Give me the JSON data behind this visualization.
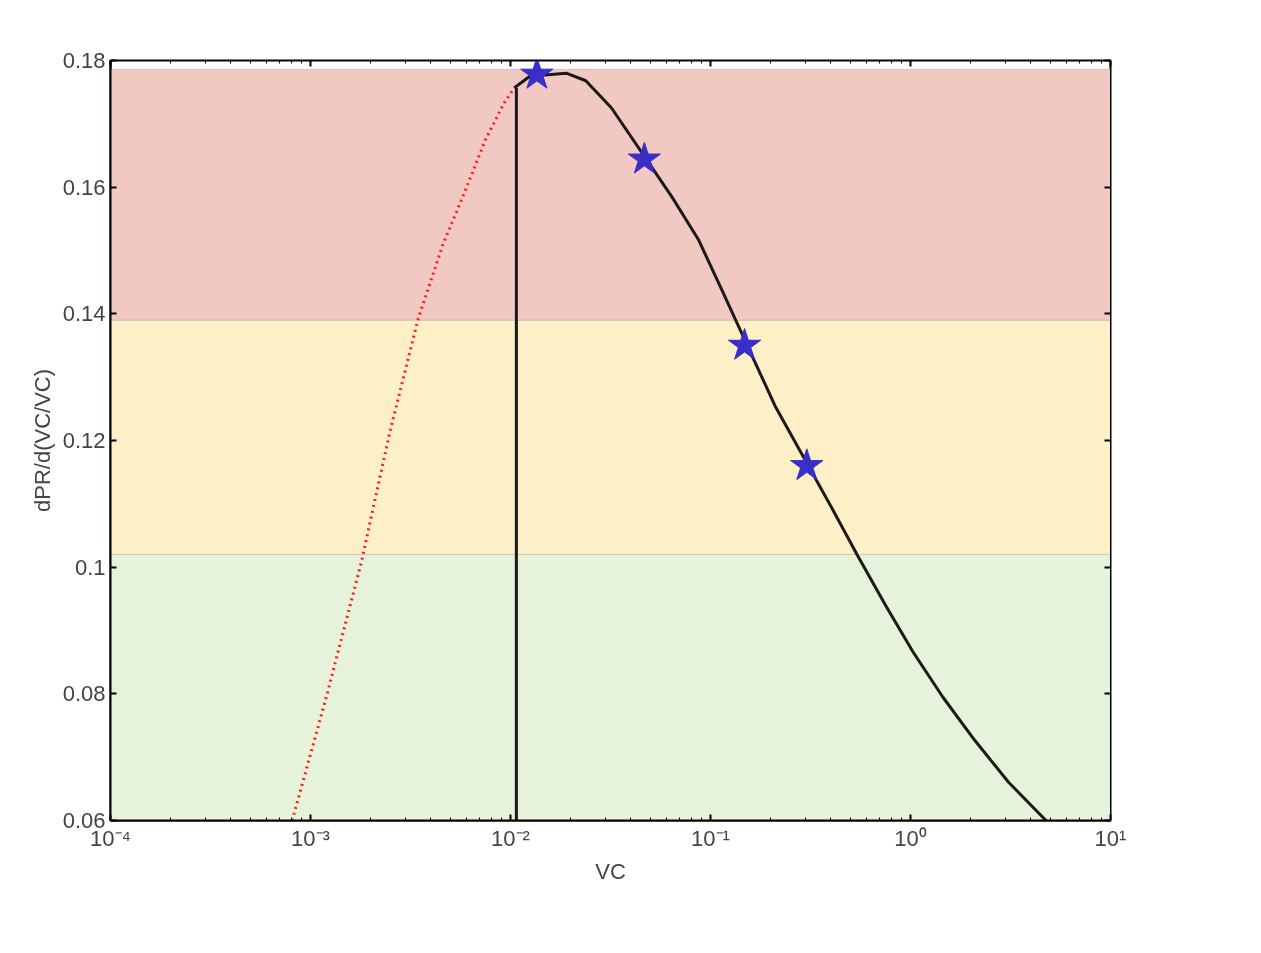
{
  "chart_data": {
    "type": "line",
    "xlabel": "VC",
    "ylabel": "dPR/d(VC/VC)",
    "log": "x",
    "grid": false,
    "xlim": [
      0.0001,
      10
    ],
    "ylim": [
      0.06,
      0.18
    ],
    "xticks": [
      {
        "value": 0.0001,
        "label": "10⁻⁴"
      },
      {
        "value": 0.001,
        "label": "10⁻³"
      },
      {
        "value": 0.01,
        "label": "10⁻²"
      },
      {
        "value": 0.1,
        "label": "10⁻¹"
      },
      {
        "value": 1,
        "label": "10⁰"
      },
      {
        "value": 10,
        "label": "10¹"
      }
    ],
    "yticks": [
      0.06,
      0.08,
      0.1,
      0.12,
      0.14,
      0.16,
      0.18
    ],
    "bands": [
      {
        "axis": "y",
        "from": 0.06,
        "to": 0.102,
        "color": "#e6f2d9"
      },
      {
        "axis": "y",
        "from": 0.102,
        "to": 0.139,
        "color": "#fef0c6"
      },
      {
        "axis": "y",
        "from": 0.139,
        "to": 0.1786,
        "color": "#f2c8c2"
      }
    ],
    "series": [
      {
        "type": "line",
        "color": "#ff1a1a",
        "line_style": "dotted",
        "x": [
          0.00081,
          0.0012,
          0.00179,
          0.0025,
          0.00346,
          0.0046,
          0.00581,
          0.0075,
          0.0093,
          0.01045
        ],
        "values": [
          0.06,
          0.0795,
          0.1006,
          0.1215,
          0.1393,
          0.151,
          0.1587,
          0.1675,
          0.1733,
          0.1757
        ]
      },
      {
        "type": "line",
        "color": "#1a1a1a",
        "line_style": "solid",
        "x": [
          0.01045,
          0.0125,
          0.019,
          0.0238,
          0.032,
          0.064,
          0.0871,
          0.115,
          0.21,
          0.41,
          0.54,
          0.75,
          1.03,
          1.45,
          2.09,
          3.1,
          4.76
        ],
        "values": [
          0.1757,
          0.1775,
          0.178,
          0.1768,
          0.1725,
          0.1585,
          0.1517,
          0.1435,
          0.1255,
          0.109,
          0.102,
          0.094,
          0.0866,
          0.0795,
          0.0727,
          0.066,
          0.06
        ]
      },
      {
        "type": "line",
        "color": "#1a1a1a",
        "line_style": "solid",
        "x": [
          0.0107,
          0.0107
        ],
        "values": [
          0.06,
          0.1757
        ]
      },
      {
        "type": "scatter",
        "color": "#3a2ec8",
        "marker": "star",
        "x": [
          0.01355,
          0.0467,
          0.148,
          0.303
        ],
        "values": [
          0.1778,
          0.1644,
          0.135,
          0.116
        ]
      }
    ]
  }
}
